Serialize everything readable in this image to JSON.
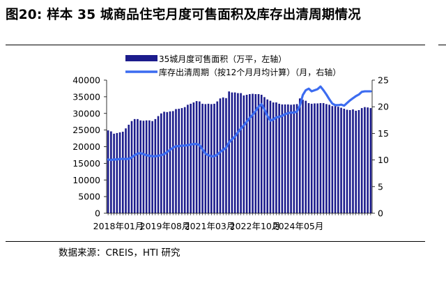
{
  "figure": {
    "title": "图20:  样本 35 城商品住宅月度可售面积及库存出清周期情况",
    "source": "数据来源：CREIS，HTI 研究"
  },
  "colors": {
    "bar": "#1c1c8c",
    "line": "#3c6cf0"
  },
  "chart_data": {
    "type": "bar",
    "x_tick_labels": [
      "2018年01月",
      "2019年08月",
      "2021年03月",
      "2022年10月",
      "2024年05月"
    ],
    "x": [
      "2018-01",
      "2018-02",
      "2018-03",
      "2018-04",
      "2018-05",
      "2018-06",
      "2018-07",
      "2018-08",
      "2018-09",
      "2018-10",
      "2018-11",
      "2018-12",
      "2019-01",
      "2019-02",
      "2019-03",
      "2019-04",
      "2019-05",
      "2019-06",
      "2019-07",
      "2019-08",
      "2019-09",
      "2019-10",
      "2019-11",
      "2019-12",
      "2020-01",
      "2020-02",
      "2020-03",
      "2020-04",
      "2020-05",
      "2020-06",
      "2020-07",
      "2020-08",
      "2020-09",
      "2020-10",
      "2020-11",
      "2020-12",
      "2021-01",
      "2021-02",
      "2021-03",
      "2021-04",
      "2021-05",
      "2021-06",
      "2021-07",
      "2021-08",
      "2021-09",
      "2021-10",
      "2021-11",
      "2021-12",
      "2022-01",
      "2022-02",
      "2022-03",
      "2022-04",
      "2022-05",
      "2022-06",
      "2022-07",
      "2022-08",
      "2022-09",
      "2022-10",
      "2022-11",
      "2022-12",
      "2023-01",
      "2023-02",
      "2023-03",
      "2023-04",
      "2023-05",
      "2023-06",
      "2023-07",
      "2023-08",
      "2023-09",
      "2023-10",
      "2023-11",
      "2023-12",
      "2024-01",
      "2024-02",
      "2024-03",
      "2024-04",
      "2024-05",
      "2024-06",
      "2024-07",
      "2024-08",
      "2024-09",
      "2024-10",
      "2024-11",
      "2024-12",
      "2025-01",
      "2025-02",
      "2025-03",
      "2025-04",
      "2025-05",
      "2025-06"
    ],
    "y_left_ticks": [
      "0",
      "5000",
      "10000",
      "15000",
      "20000",
      "25000",
      "30000",
      "35000",
      "40000"
    ],
    "y_right_ticks": [
      "0",
      "5",
      "10",
      "15",
      "20",
      "25"
    ],
    "ylim_left": [
      0,
      40000
    ],
    "ylim_right": [
      0,
      25
    ],
    "legend_position": "top-center",
    "series": [
      {
        "name": "35城月度可售面积（万平，左轴）",
        "type": "bar",
        "axis": "left",
        "values": [
          24900,
          24600,
          23900,
          24100,
          24300,
          24500,
          25500,
          26600,
          27700,
          28300,
          28300,
          27900,
          27800,
          27900,
          27900,
          27700,
          28300,
          29200,
          30000,
          30500,
          30400,
          30600,
          30700,
          31300,
          31400,
          31600,
          31900,
          32600,
          32900,
          33300,
          33700,
          33600,
          32900,
          32800,
          32900,
          32800,
          32900,
          33600,
          34500,
          34800,
          34600,
          36600,
          36300,
          36300,
          36100,
          36100,
          35400,
          35600,
          35800,
          35900,
          35800,
          35800,
          35600,
          34900,
          34200,
          33800,
          33300,
          33300,
          32900,
          32700,
          32700,
          32700,
          32600,
          32700,
          32800,
          34500,
          34100,
          33800,
          33100,
          32900,
          33000,
          33000,
          33100,
          33100,
          32800,
          32600,
          32200,
          32200,
          32000,
          31700,
          31400,
          31100,
          31000,
          31200,
          30800,
          31000,
          31600,
          31900,
          31800,
          31600
        ]
      },
      {
        "name": "库存出清周期（按12个月月均计算）（月，右轴）",
        "type": "line",
        "axis": "right",
        "values": [
          10.1,
          10.0,
          10.1,
          10.1,
          10.2,
          10.2,
          10.2,
          10.2,
          10.5,
          10.9,
          11.2,
          11.3,
          11.1,
          10.9,
          10.8,
          10.7,
          10.7,
          10.8,
          10.9,
          11.1,
          11.5,
          11.9,
          12.3,
          12.6,
          12.6,
          12.7,
          12.7,
          12.8,
          12.9,
          13.0,
          13.0,
          12.8,
          12.0,
          11.2,
          10.9,
          10.7,
          10.7,
          11.0,
          11.5,
          11.9,
          12.3,
          13.3,
          13.9,
          14.4,
          15.2,
          15.9,
          16.5,
          17.2,
          17.9,
          18.5,
          19.2,
          20.0,
          20.5,
          19.5,
          18.3,
          17.4,
          17.6,
          18.0,
          18.1,
          18.3,
          18.6,
          18.8,
          18.9,
          18.9,
          19.1,
          20.2,
          22.2,
          23.1,
          23.4,
          22.9,
          23.1,
          23.3,
          23.8,
          23.1,
          22.3,
          21.4,
          20.6,
          20.3,
          20.3,
          20.4,
          20.2,
          20.7,
          21.2,
          21.6,
          22.0,
          22.3,
          22.8,
          22.9,
          22.9,
          22.9
        ]
      }
    ]
  }
}
